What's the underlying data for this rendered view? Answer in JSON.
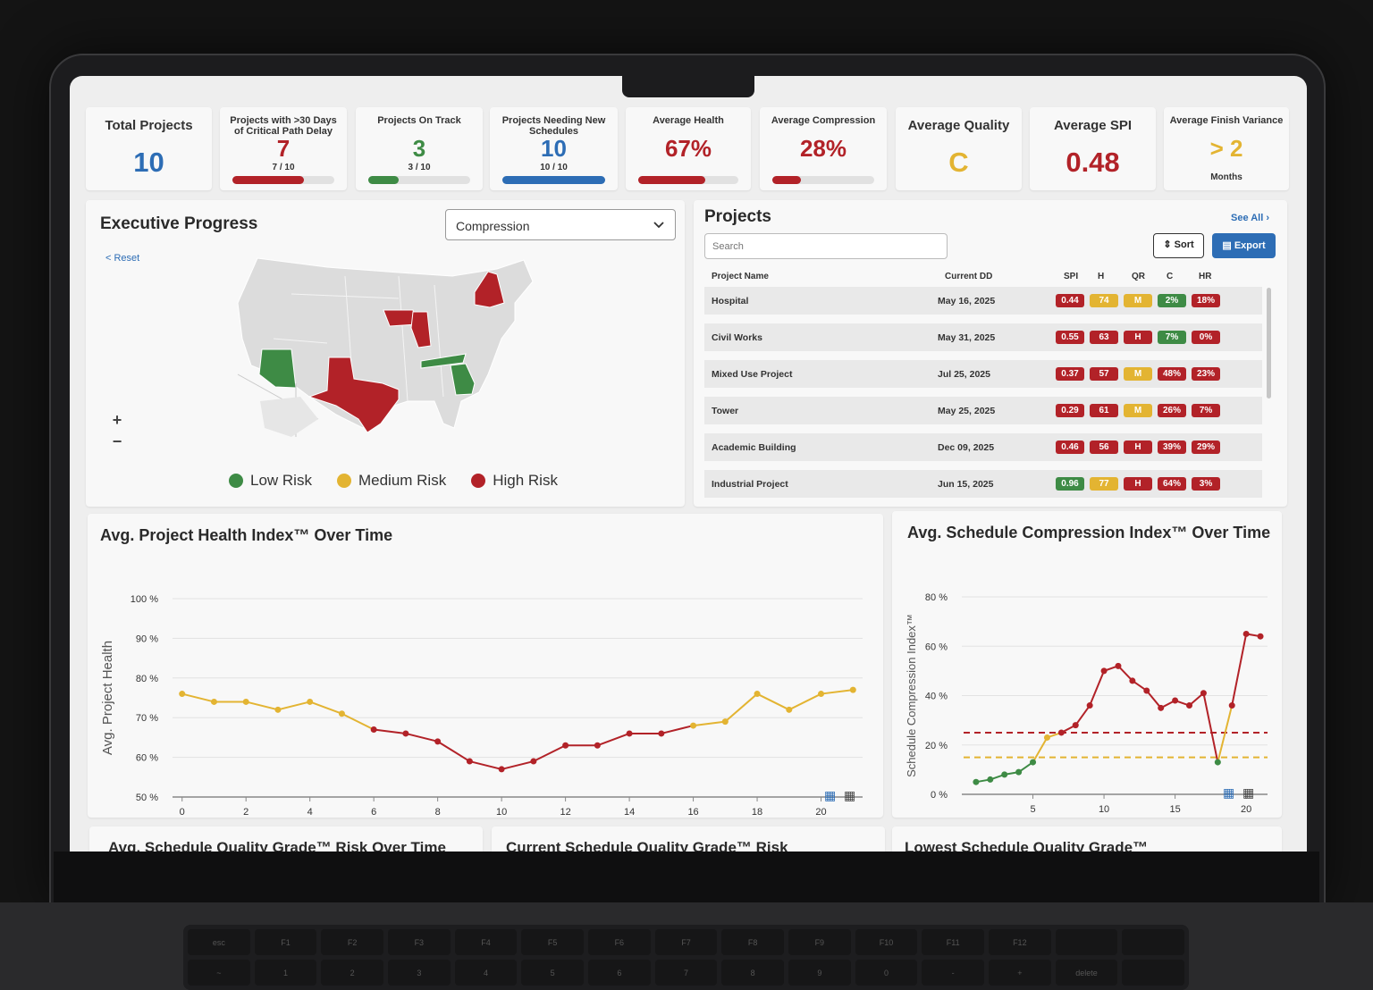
{
  "colors": {
    "red": "#b22228",
    "green": "#3e8b45",
    "yellow": "#e3b432",
    "blue": "#2d6db5"
  },
  "kpis": [
    {
      "label": "Total Projects",
      "value": "10",
      "color": "#2d6db5",
      "big": true
    },
    {
      "label": "Projects with >30 Days of Critical Path Delay",
      "value": "7",
      "sub": "7 / 10",
      "color": "#b22228",
      "fill": 0.7
    },
    {
      "label": "Projects On Track",
      "value": "3",
      "sub": "3 / 10",
      "color": "#3e8b45",
      "fill": 0.3
    },
    {
      "label": "Projects Needing New Schedules",
      "value": "10",
      "sub": "10 / 10",
      "color": "#2d6db5",
      "fill": 1.0
    },
    {
      "label": "Average Health",
      "value": "67%",
      "color": "#b22228",
      "fill": 0.67
    },
    {
      "label": "Average Compression",
      "value": "28%",
      "color": "#b22228",
      "fill": 0.28
    },
    {
      "label": "Average Quality",
      "value": "C",
      "color": "#e3b432",
      "big": true
    },
    {
      "label": "Average SPI",
      "value": "0.48",
      "color": "#b22228",
      "big": true
    },
    {
      "label": "Average Finish Variance",
      "value": "> 2",
      "sub": "Months",
      "color": "#e3b432"
    }
  ],
  "exec": {
    "title": "Executive Progress",
    "dropdown": "Compression",
    "reset": "< Reset",
    "zoom_in": "+",
    "zoom_out": "−",
    "legend": [
      {
        "label": "Low Risk",
        "color": "#3e8b45"
      },
      {
        "label": "Medium Risk",
        "color": "#e3b432"
      },
      {
        "label": "High Risk",
        "color": "#b22228"
      }
    ]
  },
  "projects": {
    "title": "Projects",
    "see_all": "See All",
    "search_placeholder": "Search",
    "sort": "Sort",
    "export": "Export",
    "columns": [
      "Project Name",
      "Current DD",
      "SPI",
      "H",
      "QR",
      "C",
      "HR"
    ],
    "rows": [
      {
        "name": "Hospital",
        "dd": "May 16, 2025",
        "badges": [
          [
            "0.44",
            "r"
          ],
          [
            "74",
            "y"
          ],
          [
            "M",
            "y"
          ],
          [
            "2%",
            "g"
          ],
          [
            "18%",
            "r"
          ]
        ]
      },
      {
        "name": "Civil Works",
        "dd": "May 31, 2025",
        "badges": [
          [
            "0.55",
            "r"
          ],
          [
            "63",
            "r"
          ],
          [
            "H",
            "r"
          ],
          [
            "7%",
            "g"
          ],
          [
            "0%",
            "r"
          ]
        ]
      },
      {
        "name": "Mixed Use Project",
        "dd": "Jul 25, 2025",
        "badges": [
          [
            "0.37",
            "r"
          ],
          [
            "57",
            "r"
          ],
          [
            "M",
            "y"
          ],
          [
            "48%",
            "r"
          ],
          [
            "23%",
            "r"
          ]
        ]
      },
      {
        "name": "Tower",
        "dd": "May 25, 2025",
        "badges": [
          [
            "0.29",
            "r"
          ],
          [
            "61",
            "r"
          ],
          [
            "M",
            "y"
          ],
          [
            "26%",
            "r"
          ],
          [
            "7%",
            "r"
          ]
        ]
      },
      {
        "name": "Academic Building",
        "dd": "Dec 09, 2025",
        "badges": [
          [
            "0.46",
            "r"
          ],
          [
            "56",
            "r"
          ],
          [
            "H",
            "r"
          ],
          [
            "39%",
            "r"
          ],
          [
            "29%",
            "r"
          ]
        ]
      },
      {
        "name": "Industrial Project",
        "dd": "Jun 15, 2025",
        "badges": [
          [
            "0.96",
            "g"
          ],
          [
            "77",
            "y"
          ],
          [
            "H",
            "r"
          ],
          [
            "64%",
            "r"
          ],
          [
            "3%",
            "r"
          ]
        ]
      }
    ]
  },
  "chart_data": [
    {
      "type": "line",
      "title": "Avg. Project Health Index™ Over Time",
      "ylabel": "Avg. Project Health",
      "x": [
        0,
        1,
        2,
        3,
        4,
        5,
        6,
        7,
        8,
        9,
        10,
        11,
        12,
        13,
        14,
        15,
        16,
        17,
        18,
        19,
        20,
        21
      ],
      "y": [
        76,
        74,
        74,
        72,
        74,
        71,
        67,
        66,
        64,
        59,
        57,
        59,
        63,
        63,
        66,
        66,
        68,
        69,
        76,
        72,
        76,
        77
      ],
      "xticks": [
        0,
        2,
        4,
        6,
        8,
        10,
        12,
        14,
        16,
        18,
        20
      ],
      "xlim": [
        -0.3,
        21.3
      ],
      "ylim": [
        50,
        100
      ],
      "yticks": [
        "50 %",
        "60 %",
        "70 %",
        "80 %",
        "90 %",
        "100 %"
      ]
    },
    {
      "type": "line",
      "title": "Avg. Schedule Compression Index™ Over Time",
      "ylabel": "Schedule Compression Index™",
      "x": [
        1,
        2,
        3,
        4,
        5,
        6,
        7,
        8,
        9,
        10,
        11,
        12,
        13,
        14,
        15,
        16,
        17,
        18,
        19,
        20,
        21
      ],
      "y": [
        5,
        6,
        8,
        9,
        13,
        23,
        25,
        28,
        36,
        50,
        52,
        46,
        42,
        35,
        38,
        36,
        41,
        13,
        36,
        65,
        64
      ],
      "xticks": [
        5,
        10,
        15,
        20
      ],
      "xlim": [
        0,
        21.5
      ],
      "thresholds": [
        {
          "value": 25,
          "color": "#b22228"
        },
        {
          "value": 15,
          "color": "#e3b432"
        }
      ],
      "ylim": [
        0,
        80
      ],
      "yticks": [
        "0 %",
        "20 %",
        "40 %",
        "60 %",
        "80 %"
      ]
    }
  ],
  "bottom_titles": [
    "Avg. Schedule Quality Grade™ Risk Over Time",
    "Current Schedule Quality Grade™ Risk",
    "Lowest Schedule Quality Grade™"
  ],
  "keyboard": [
    "esc",
    "F1",
    "F2",
    "F3",
    "F4",
    "F5",
    "F6",
    "F7",
    "F8",
    "F9",
    "F10",
    "F11",
    "F12",
    "",
    "",
    "~",
    "1",
    "2",
    "3",
    "4",
    "5",
    "6",
    "7",
    "8",
    "9",
    "0",
    "-",
    "+",
    "delete",
    ""
  ]
}
